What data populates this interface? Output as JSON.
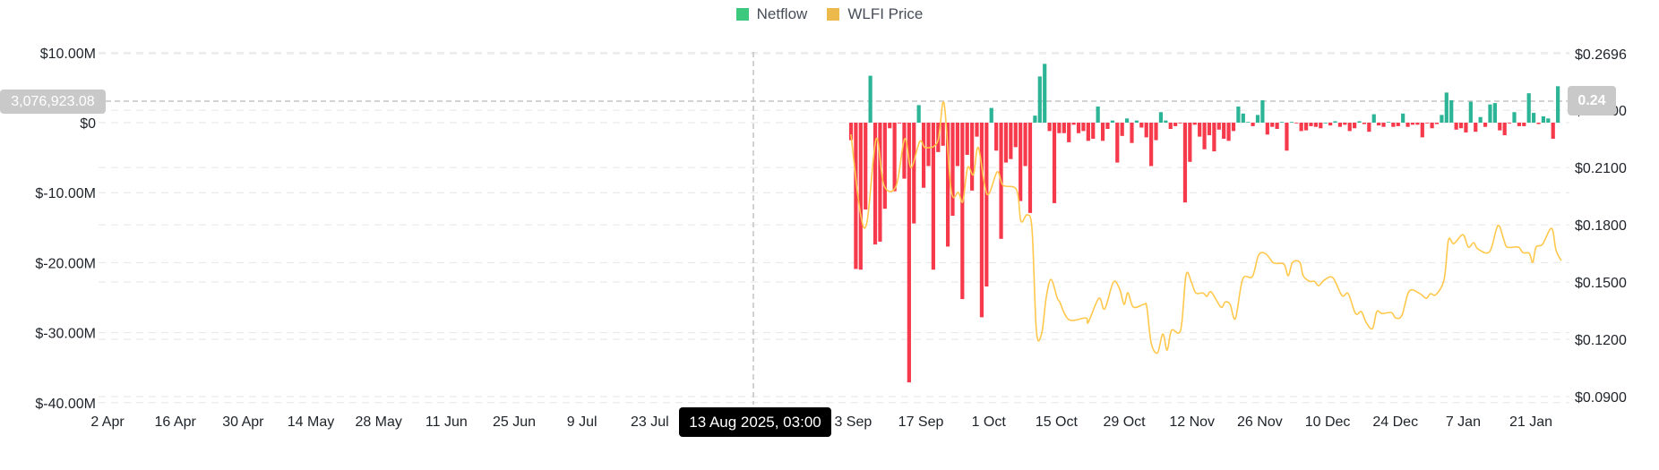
{
  "legend": [
    {
      "label": "Netflow",
      "color": "#3cc97d"
    },
    {
      "label": "WLFI Price",
      "color": "#ebb94c"
    }
  ],
  "crosshair": {
    "left_value": "3,076,923.08",
    "right_value": "0.24",
    "x_label": "13 Aug 2025, 03:00"
  },
  "colors": {
    "positive": "#2bb596",
    "negative": "#f6394b",
    "price_line": "#ffc84d",
    "grid": "#e6e6e6"
  },
  "chart_data": {
    "type": "bar+line",
    "legend_position": "top-center",
    "grid": true,
    "left_axis": {
      "label": "Netflow",
      "unit": "M USD",
      "ylim": [
        -40,
        10
      ],
      "ticks": [
        "$10.00M",
        "$0",
        "$-10.00M",
        "$-20.00M",
        "$-30.00M",
        "$-40.00M"
      ],
      "tick_values": [
        10,
        0,
        -10,
        -20,
        -30,
        -40
      ]
    },
    "right_axis": {
      "label": "WLFI Price",
      "unit": "USD",
      "ylim": [
        0.09,
        0.2696
      ],
      "ticks": [
        "$0.2696",
        "$0.2400",
        "$0.2100",
        "$0.1800",
        "$0.1500",
        "$0.1200",
        "$0.0900"
      ],
      "tick_values": [
        0.2696,
        0.24,
        0.21,
        0.18,
        0.15,
        0.12,
        0.09
      ]
    },
    "x_axis": {
      "range": [
        "2025-04-02",
        "2026-01-27"
      ],
      "ticks": [
        "2 Apr",
        "16 Apr",
        "30 Apr",
        "14 May",
        "28 May",
        "11 Jun",
        "25 Jun",
        "9 Jul",
        "23 Jul",
        "3 Sep",
        "17 Sep",
        "1 Oct",
        "15 Oct",
        "29 Oct",
        "12 Nov",
        "26 Nov",
        "10 Dec",
        "24 Dec",
        "7 Jan",
        "21 Jan"
      ]
    },
    "series": [
      {
        "name": "Netflow",
        "type": "bar",
        "start_date": "2025-09-02",
        "step": "1 day",
        "values_millions": [
          -2.5,
          -20.9,
          -21.0,
          -12.4,
          6.7,
          -17.4,
          -17.0,
          -12.3,
          -0.8,
          -9.8,
          -0.1,
          -8.0,
          -37.1,
          -14.4,
          2.5,
          -9.3,
          -6.2,
          -21.0,
          -4.2,
          -3.3,
          -17.7,
          -13.3,
          -6.2,
          -25.2,
          -4.6,
          -9.7,
          -2.0,
          -27.8,
          -23.4,
          2.1,
          -4.0,
          -16.6,
          -5.7,
          -5.2,
          -3.5,
          -11.2,
          -6.2,
          -12.9,
          1.0,
          6.6,
          8.4,
          -1.2,
          -11.5,
          -1.5,
          -1.5,
          -2.8,
          -0.3,
          -1.5,
          -1.2,
          -2.6,
          -2.3,
          2.3,
          -2.6,
          -0.9,
          0.3,
          -5.7,
          -1.9,
          0.6,
          -2.9,
          0.3,
          -0.7,
          -2.1,
          -6.2,
          -2.5,
          1.5,
          0.3,
          -0.9,
          -0.5,
          -0.1,
          -11.4,
          -5.6,
          -0.3,
          -2.0,
          -3.8,
          -1.8,
          -4.1,
          -1.0,
          -2.3,
          -2.6,
          -1.2,
          2.3,
          1.3,
          0.1,
          -0.5,
          1.1,
          3.2,
          -1.7,
          -0.6,
          -0.9,
          0.1,
          -4.0,
          0.1,
          -0.1,
          -1.2,
          -1.1,
          -0.5,
          -0.6,
          -0.8,
          0.0,
          -0.4,
          0.2,
          -0.6,
          -0.3,
          -1.2,
          -0.8,
          0.2,
          -0.2,
          -1.3,
          1.2,
          -0.4,
          -0.6,
          0.1,
          -0.6,
          -0.5,
          1.3,
          -0.6,
          -0.3,
          -0.3,
          -2.1,
          -0.1,
          -0.8,
          -0.2,
          1.1,
          4.3,
          3.2,
          -1.0,
          -0.8,
          -1.4,
          3.0,
          -1.3,
          0.8,
          -0.6,
          2.6,
          2.8,
          -1.1,
          -1.8,
          -0.1,
          1.5,
          -0.5,
          -0.5,
          4.2,
          1.4,
          -0.2,
          0.9,
          0.6,
          -2.3,
          5.2
        ]
      },
      {
        "name": "WLFI Price",
        "type": "line",
        "start_date": "2025-09-02",
        "x_unit": "days since start_date",
        "points": [
          [
            0,
            0.2274
          ],
          [
            1.9,
            0.1866
          ],
          [
            3.3,
            0.1814
          ],
          [
            5.2,
            0.225
          ],
          [
            6.8,
            0.2007
          ],
          [
            9.3,
            0.2002
          ],
          [
            11.1,
            0.225
          ],
          [
            12.4,
            0.21
          ],
          [
            14.2,
            0.2236
          ],
          [
            15.4,
            0.2204
          ],
          [
            17.9,
            0.2236
          ],
          [
            19.2,
            0.2438
          ],
          [
            20.7,
            0.1978
          ],
          [
            22.2,
            0.1969
          ],
          [
            23.1,
            0.1922
          ],
          [
            24.1,
            0.21
          ],
          [
            25.3,
            0.2063
          ],
          [
            26.3,
            0.2204
          ],
          [
            28.1,
            0.196
          ],
          [
            30.2,
            0.2077
          ],
          [
            31.4,
            0.2007
          ],
          [
            34.2,
            0.1983
          ],
          [
            35.1,
            0.1819
          ],
          [
            36.4,
            0.1852
          ],
          [
            37.4,
            0.1772
          ],
          [
            38.3,
            0.1242
          ],
          [
            39.4,
            0.1233
          ],
          [
            40.3,
            0.1416
          ],
          [
            41.3,
            0.1514
          ],
          [
            42.6,
            0.1416
          ],
          [
            43.1,
            0.1396
          ],
          [
            45.0,
            0.1303
          ],
          [
            48.5,
            0.1312
          ],
          [
            49.0,
            0.1289
          ],
          [
            51.2,
            0.1415
          ],
          [
            52.4,
            0.1359
          ],
          [
            54.2,
            0.15
          ],
          [
            55.5,
            0.1462
          ],
          [
            56.4,
            0.1383
          ],
          [
            57.2,
            0.1444
          ],
          [
            58.3,
            0.1369
          ],
          [
            60.5,
            0.1383
          ],
          [
            61.1,
            0.1369
          ],
          [
            62.0,
            0.1181
          ],
          [
            63.3,
            0.1129
          ],
          [
            64.4,
            0.1228
          ],
          [
            65.3,
            0.1143
          ],
          [
            66.2,
            0.1247
          ],
          [
            68.1,
            0.1251
          ],
          [
            69.2,
            0.1537
          ],
          [
            70.3,
            0.15
          ],
          [
            71.2,
            0.1443
          ],
          [
            72.7,
            0.1443
          ],
          [
            73.5,
            0.1425
          ],
          [
            74.4,
            0.1448
          ],
          [
            76.4,
            0.1369
          ],
          [
            77.3,
            0.1396
          ],
          [
            78.3,
            0.1383
          ],
          [
            79.4,
            0.1309
          ],
          [
            80.9,
            0.1515
          ],
          [
            82.9,
            0.1529
          ],
          [
            84.2,
            0.1642
          ],
          [
            85.7,
            0.1647
          ],
          [
            87.3,
            0.16
          ],
          [
            89.4,
            0.1594
          ],
          [
            90.3,
            0.1533
          ],
          [
            91.2,
            0.1603
          ],
          [
            92.7,
            0.1603
          ],
          [
            93.4,
            0.1533
          ],
          [
            94.7,
            0.1504
          ],
          [
            95.7,
            0.1504
          ],
          [
            96.6,
            0.1481
          ],
          [
            97.7,
            0.1509
          ],
          [
            99.5,
            0.1523
          ],
          [
            101.4,
            0.1429
          ],
          [
            102.7,
            0.1439
          ],
          [
            104.2,
            0.1335
          ],
          [
            105.4,
            0.1345
          ],
          [
            106.4,
            0.1289
          ],
          [
            107.7,
            0.1256
          ],
          [
            108.6,
            0.1345
          ],
          [
            109.7,
            0.1335
          ],
          [
            111.6,
            0.134
          ],
          [
            112.5,
            0.1312
          ],
          [
            113.8,
            0.1326
          ],
          [
            115.3,
            0.1453
          ],
          [
            117.5,
            0.1439
          ],
          [
            118.8,
            0.1415
          ],
          [
            119.7,
            0.1439
          ],
          [
            120.8,
            0.1434
          ],
          [
            122.5,
            0.1514
          ],
          [
            123.4,
            0.172
          ],
          [
            124.5,
            0.1701
          ],
          [
            126.4,
            0.1748
          ],
          [
            127.5,
            0.1683
          ],
          [
            128.6,
            0.1706
          ],
          [
            129.5,
            0.1673
          ],
          [
            131.9,
            0.1659
          ],
          [
            133.6,
            0.1795
          ],
          [
            134.8,
            0.1725
          ],
          [
            135.5,
            0.1683
          ],
          [
            137.8,
            0.1683
          ],
          [
            138.8,
            0.1654
          ],
          [
            140.1,
            0.165
          ],
          [
            140.8,
            0.1603
          ],
          [
            141.5,
            0.1683
          ],
          [
            142.8,
            0.1697
          ],
          [
            144.7,
            0.1781
          ],
          [
            145.6,
            0.1668
          ],
          [
            146.7,
            0.1612
          ]
        ]
      }
    ]
  }
}
